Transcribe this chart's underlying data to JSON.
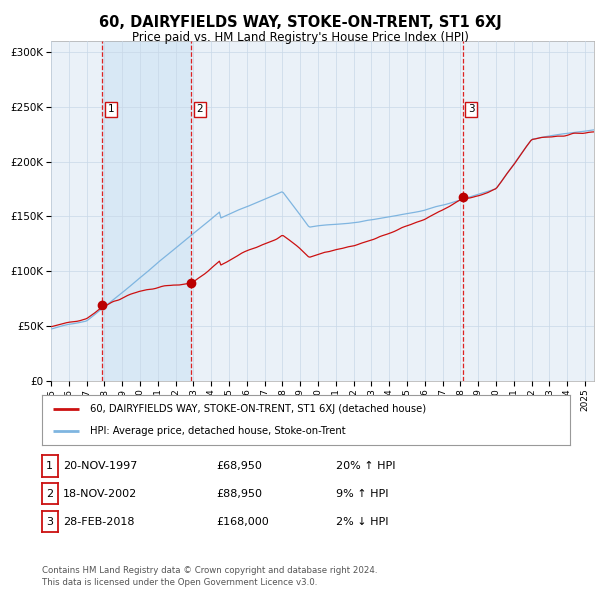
{
  "title": "60, DAIRYFIELDS WAY, STOKE-ON-TRENT, ST1 6XJ",
  "subtitle": "Price paid vs. HM Land Registry's House Price Index (HPI)",
  "legend_line1": "60, DAIRYFIELDS WAY, STOKE-ON-TRENT, ST1 6XJ (detached house)",
  "legend_line2": "HPI: Average price, detached house, Stoke-on-Trent",
  "footer": "Contains HM Land Registry data © Crown copyright and database right 2024.\nThis data is licensed under the Open Government Licence v3.0.",
  "sale_dates_display": [
    "20-NOV-1997",
    "18-NOV-2002",
    "28-FEB-2018"
  ],
  "sale_prices": [
    68950,
    88950,
    168000
  ],
  "sale_labels": [
    "1",
    "2",
    "3"
  ],
  "sale_hpi_pct": [
    "20% ↑ HPI",
    "9% ↑ HPI",
    "2% ↓ HPI"
  ],
  "sale_times": [
    1997.877,
    2002.877,
    2018.125
  ],
  "hpi_color": "#7fb5e0",
  "price_color": "#cc1111",
  "marker_color": "#bb0000",
  "dashed_color": "#dd2222",
  "shade_color": "#d8e8f5",
  "bg_color": "#eaf1f8",
  "grid_color": "#c8d8e8",
  "ylim": [
    0,
    310000
  ],
  "yticks": [
    0,
    50000,
    100000,
    150000,
    200000,
    250000,
    300000
  ],
  "start_year": 1995,
  "end_year": 2025
}
